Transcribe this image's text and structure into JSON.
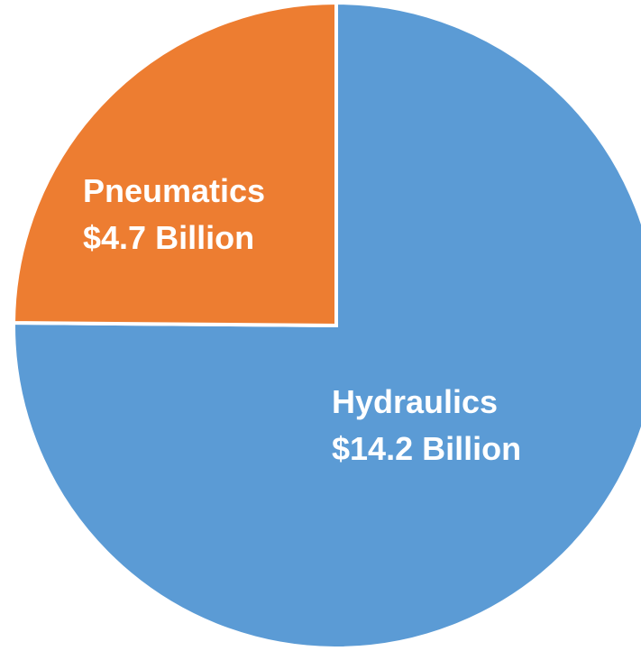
{
  "chart_data": {
    "type": "pie",
    "title": "",
    "start_angle_deg": 0,
    "direction": "clockwise",
    "legend": "none",
    "slices": [
      {
        "name": "Hydraulics",
        "value": 14.2,
        "label_line1": "Hydraulics",
        "label_line2": "$14.2 Billion",
        "color": "#5b9bd5"
      },
      {
        "name": "Pneumatics",
        "value": 4.7,
        "label_line1": "Pneumatics",
        "label_line2": "$4.7 Billion",
        "color": "#ed7d31"
      }
    ]
  }
}
